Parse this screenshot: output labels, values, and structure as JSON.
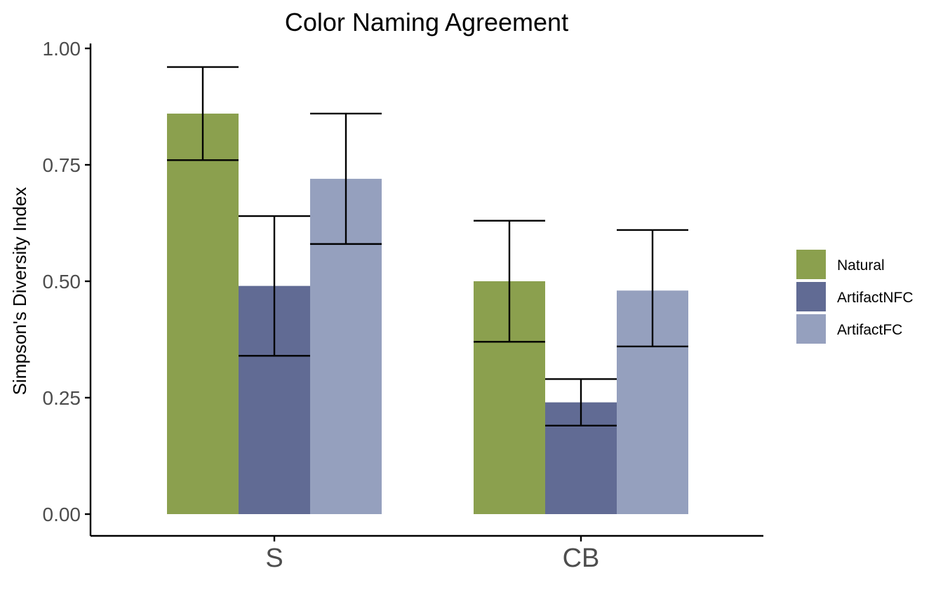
{
  "chart_data": {
    "type": "bar",
    "title": "Color Naming Agreement",
    "xlabel": "",
    "ylabel": "Simpson's Diversity Index",
    "ylim": [
      -0.05,
      1.0
    ],
    "yticks": [
      "0.00",
      "0.25",
      "0.50",
      "0.75",
      "1.00"
    ],
    "ytick_values": [
      0,
      0.25,
      0.5,
      0.75,
      1.0
    ],
    "categories": [
      "S",
      "CB"
    ],
    "series": [
      {
        "name": "Natural",
        "color": "#8ba04e",
        "values": [
          0.86,
          0.5
        ],
        "err_low": [
          0.76,
          0.37
        ],
        "err_high": [
          0.96,
          0.63
        ]
      },
      {
        "name": "ArtifactNFC",
        "color": "#616b94",
        "values": [
          0.49,
          0.24
        ],
        "err_low": [
          0.34,
          0.19
        ],
        "err_high": [
          0.64,
          0.29
        ]
      },
      {
        "name": "ArtifactFC",
        "color": "#95a0be",
        "values": [
          0.72,
          0.48
        ],
        "err_low": [
          0.58,
          0.36
        ],
        "err_high": [
          0.86,
          0.61
        ]
      }
    ],
    "grid": false,
    "legend_position": "right"
  }
}
